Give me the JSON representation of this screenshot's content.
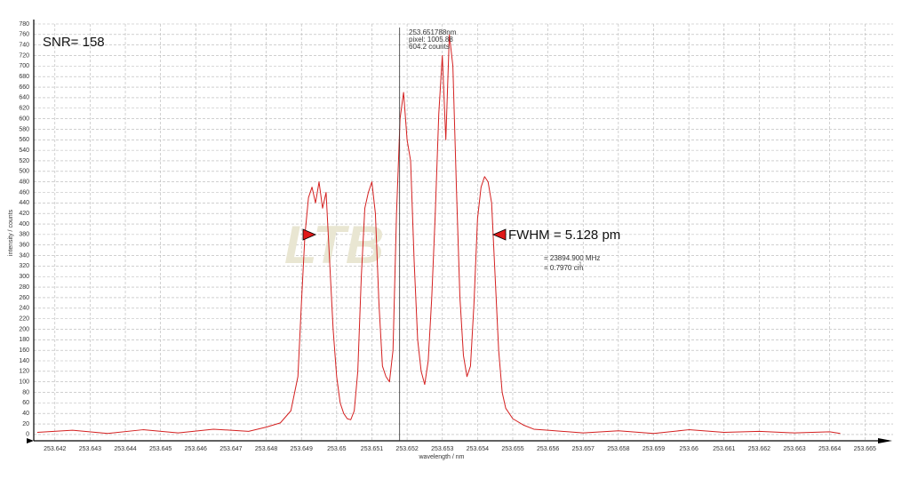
{
  "chart_data": {
    "type": "line",
    "x_label": "wavelength / nm",
    "y_label": "intensity / counts",
    "annotations": {
      "snr": "SNR= 158",
      "fwhm": "FWHM = 5.128 pm",
      "pixel": "pixel:  1005.88",
      "counts": "604.2  counts",
      "mhz": "= 23894.900 MHz",
      "wavenumber": "= 0.7970 cm",
      "wavenumber_exp": "-1"
    },
    "cursor": {
      "value": 253.651788,
      "label": "253.651788nm"
    },
    "x": [
      253.6415,
      253.6425,
      253.6435,
      253.6445,
      253.6455,
      253.6465,
      253.6475,
      253.648,
      253.6484,
      253.6487,
      253.6489,
      253.649,
      253.6491,
      253.6492,
      253.6493,
      253.6494,
      253.6495,
      253.6496,
      253.6497,
      253.6498,
      253.6499,
      253.65,
      253.6501,
      253.6502,
      253.6503,
      253.6504,
      253.6505,
      253.6506,
      253.6507,
      253.6508,
      253.6509,
      253.651,
      253.6511,
      253.6512,
      253.6513,
      253.6514,
      253.6515,
      253.6516,
      253.6517,
      253.6518,
      253.6519,
      253.652,
      253.6521,
      253.6522,
      253.6523,
      253.6524,
      253.6525,
      253.6526,
      253.6527,
      253.6528,
      253.6529,
      253.653,
      253.6531,
      253.6532,
      253.6533,
      253.6534,
      253.6535,
      253.6536,
      253.6537,
      253.6538,
      253.6539,
      253.654,
      253.6541,
      253.6542,
      253.6543,
      253.6544,
      253.6545,
      253.6546,
      253.6547,
      253.6548,
      253.655,
      253.6553,
      253.6556,
      253.656,
      253.657,
      253.658,
      253.659,
      253.66,
      253.661,
      253.662,
      253.663,
      253.664,
      253.6643
    ],
    "series": [
      {
        "color": "#d42020",
        "values": [
          4,
          8,
          2,
          9,
          3,
          10,
          6,
          14,
          22,
          45,
          110,
          250,
          380,
          450,
          470,
          440,
          480,
          430,
          460,
          330,
          200,
          110,
          60,
          40,
          30,
          28,
          45,
          120,
          300,
          430,
          460,
          480,
          420,
          250,
          130,
          110,
          100,
          160,
          420,
          600,
          650,
          560,
          520,
          330,
          180,
          120,
          95,
          140,
          260,
          420,
          610,
          720,
          560,
          760,
          700,
          470,
          260,
          150,
          110,
          130,
          250,
          410,
          470,
          490,
          480,
          440,
          300,
          160,
          80,
          50,
          30,
          18,
          10,
          8,
          3,
          7,
          2,
          9,
          4,
          6,
          3,
          5,
          2
        ]
      }
    ],
    "xlim": [
      253.6414,
      253.6658
    ],
    "ylim": [
      -12,
      780
    ],
    "xticks": [
      253.642,
      253.643,
      253.644,
      253.645,
      253.646,
      253.647,
      253.648,
      253.649,
      253.65,
      253.651,
      253.652,
      253.653,
      253.654,
      253.655,
      253.656,
      253.657,
      253.658,
      253.659,
      253.66,
      253.661,
      253.662,
      253.663,
      253.664,
      253.665
    ],
    "yticks": [
      0,
      20,
      40,
      60,
      80,
      100,
      120,
      140,
      160,
      180,
      200,
      220,
      240,
      260,
      280,
      300,
      320,
      340,
      360,
      380,
      400,
      420,
      440,
      460,
      480,
      500,
      520,
      540,
      560,
      580,
      600,
      620,
      640,
      660,
      680,
      700,
      720,
      740,
      760,
      780
    ],
    "grid": true
  }
}
